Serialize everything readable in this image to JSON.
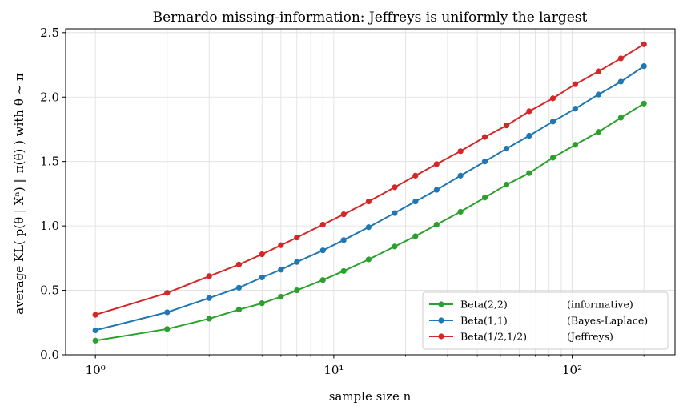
{
  "chart_data": {
    "type": "line",
    "title": "Bernardo missing-information: Jeffreys is uniformly the largest",
    "xlabel": "sample size n",
    "ylabel": "average KL( p(θ | Xⁿ) ‖ π(θ) )  with θ ~ π",
    "xscale": "log",
    "xlim": [
      0.75,
      270
    ],
    "ylim": [
      0,
      2.53
    ],
    "x_ticks": [
      1,
      10,
      100
    ],
    "x_tick_labels": [
      "10⁰",
      "10¹",
      "10²"
    ],
    "y_ticks": [
      0.0,
      0.5,
      1.0,
      1.5,
      2.0,
      2.5
    ],
    "y_tick_labels": [
      "0.0",
      "0.5",
      "1.0",
      "1.5",
      "2.0",
      "2.5"
    ],
    "grid": true,
    "legend_position": "lower-right",
    "x": [
      1,
      2,
      3,
      4,
      5,
      6,
      7,
      9,
      11,
      14,
      18,
      22,
      27,
      34,
      43,
      53,
      66,
      83,
      103,
      129,
      160,
      200
    ],
    "series": [
      {
        "name": "Beta(2,2)",
        "note": "(informative)",
        "color": "#2ca02c",
        "values": [
          0.11,
          0.2,
          0.28,
          0.35,
          0.4,
          0.45,
          0.5,
          0.58,
          0.65,
          0.74,
          0.84,
          0.92,
          1.01,
          1.11,
          1.22,
          1.32,
          1.41,
          1.53,
          1.63,
          1.73,
          1.84,
          1.95
        ]
      },
      {
        "name": "Beta(1,1)",
        "note": "(Bayes-Laplace)",
        "color": "#1f77b4",
        "values": [
          0.19,
          0.33,
          0.44,
          0.52,
          0.6,
          0.66,
          0.72,
          0.81,
          0.89,
          0.99,
          1.1,
          1.19,
          1.28,
          1.39,
          1.5,
          1.6,
          1.7,
          1.81,
          1.91,
          2.02,
          2.12,
          2.24
        ]
      },
      {
        "name": "Beta(1/2,1/2)",
        "note": "(Jeffreys)",
        "color": "#d62728",
        "values": [
          0.31,
          0.48,
          0.61,
          0.7,
          0.78,
          0.85,
          0.91,
          1.01,
          1.09,
          1.19,
          1.3,
          1.39,
          1.48,
          1.58,
          1.69,
          1.78,
          1.89,
          1.99,
          2.1,
          2.2,
          2.3,
          2.41
        ]
      }
    ]
  }
}
